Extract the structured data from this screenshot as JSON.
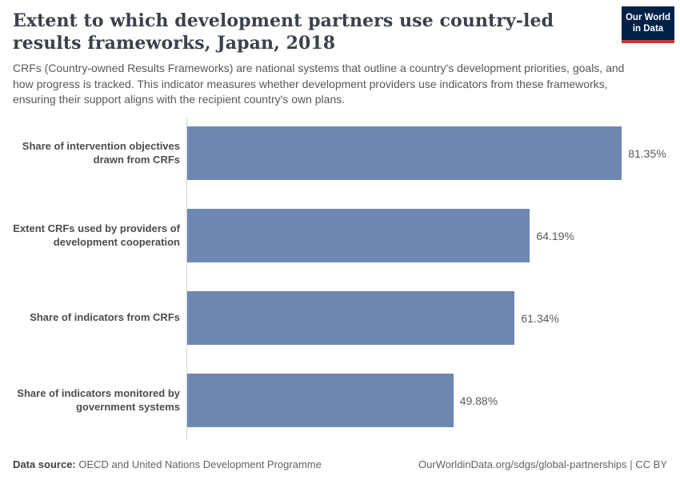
{
  "header": {
    "title": "Extent to which development partners use country-led results frameworks, Japan, 2018",
    "subtitle": "CRFs (Country-owned Results Frameworks) are national systems that outline a country's development priorities, goals, and how progress is tracked. This indicator measures whether development providers use indicators from these frameworks, ensuring their support aligns with the recipient country's own plans.",
    "logo": {
      "line1": "Our World",
      "line2": "in Data",
      "bg_color": "#002147",
      "accent_color": "#d1342e"
    }
  },
  "chart_data": {
    "type": "bar",
    "orientation": "horizontal",
    "title": "Extent to which development partners use country-led results frameworks, Japan, 2018",
    "categories": [
      "Share of intervention objectives\ndrawn from CRFs",
      "Extent CRFs used by providers of\ndevelopment cooperation",
      "Share of indicators from CRFs",
      "Share of indicators monitored by\ngovernment systems"
    ],
    "values": [
      81.35,
      64.19,
      61.34,
      49.88
    ],
    "value_labels": [
      "81.35%",
      "64.19%",
      "61.34%",
      "49.88%"
    ],
    "unit": "%",
    "xlim": [
      0,
      90
    ],
    "grid": false,
    "legend": "none",
    "bar_color": "#6f88b1",
    "axis_line_color": "#d4d4d4"
  },
  "footer": {
    "source_label": "Data source:",
    "source_value": "OECD and United Nations Development Programme",
    "attribution": "OurWorldinData.org/sdgs/global-partnerships | CC BY"
  }
}
